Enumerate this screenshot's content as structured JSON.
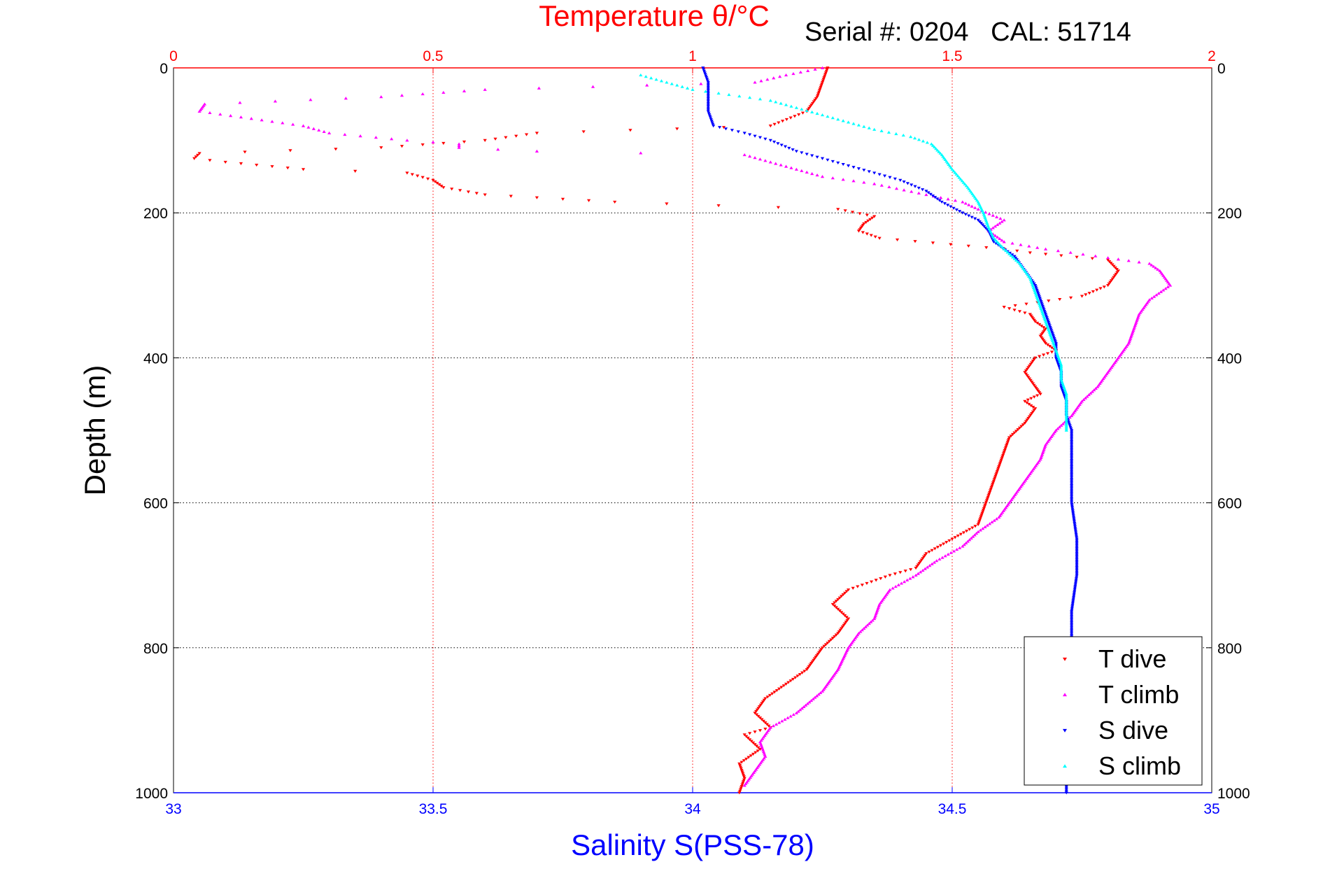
{
  "chart_data": {
    "type": "scatter",
    "serial_text": "Serial #: 0204   CAL: 51714",
    "y_axis": {
      "label": "Depth (m)",
      "range": [
        0,
        1000
      ],
      "ticks": [
        "0",
        "200",
        "400",
        "600",
        "800",
        "1000"
      ],
      "reversed": true
    },
    "x_axis_bottom": {
      "label": "Salinity S(PSS-78)",
      "range": [
        33,
        35
      ],
      "ticks": [
        "33",
        "33.5",
        "34",
        "34.5",
        "35"
      ],
      "color": "#0000ff"
    },
    "x_axis_top": {
      "label": "Temperature θ/°C",
      "range": [
        0,
        2
      ],
      "ticks": [
        "0",
        "0.5",
        "1",
        "1.5",
        "2"
      ],
      "color": "#ff0000"
    },
    "grid": true,
    "legend": {
      "position": "bottom-right"
    },
    "series": [
      {
        "name": "T dive",
        "axis": "temperature",
        "color": "#ff0000",
        "marker": "triangle-down",
        "points": [
          [
            1.26,
            0
          ],
          [
            1.25,
            20
          ],
          [
            1.24,
            40
          ],
          [
            1.22,
            60
          ],
          [
            1.15,
            80
          ],
          [
            0.7,
            90
          ],
          [
            0.6,
            100
          ],
          [
            0.4,
            110
          ],
          [
            0.05,
            118
          ],
          [
            0.04,
            125
          ],
          [
            0.1,
            130
          ],
          [
            0.25,
            140
          ],
          [
            0.45,
            145
          ],
          [
            0.5,
            155
          ],
          [
            0.52,
            165
          ],
          [
            0.6,
            175
          ],
          [
            0.85,
            185
          ],
          [
            1.05,
            190
          ],
          [
            1.28,
            195
          ],
          [
            1.35,
            205
          ],
          [
            1.33,
            215
          ],
          [
            1.32,
            225
          ],
          [
            1.36,
            235
          ],
          [
            1.6,
            250
          ],
          [
            1.65,
            255
          ],
          [
            1.8,
            265
          ],
          [
            1.82,
            280
          ],
          [
            1.8,
            300
          ],
          [
            1.75,
            315
          ],
          [
            1.6,
            330
          ],
          [
            1.65,
            340
          ],
          [
            1.66,
            350
          ],
          [
            1.68,
            360
          ],
          [
            1.67,
            370
          ],
          [
            1.68,
            380
          ],
          [
            1.7,
            390
          ],
          [
            1.66,
            400
          ],
          [
            1.64,
            420
          ],
          [
            1.66,
            440
          ],
          [
            1.67,
            450
          ],
          [
            1.64,
            460
          ],
          [
            1.66,
            470
          ],
          [
            1.64,
            490
          ],
          [
            1.61,
            510
          ],
          [
            1.6,
            530
          ],
          [
            1.59,
            550
          ],
          [
            1.58,
            570
          ],
          [
            1.57,
            590
          ],
          [
            1.56,
            610
          ],
          [
            1.55,
            630
          ],
          [
            1.5,
            650
          ],
          [
            1.45,
            670
          ],
          [
            1.43,
            690
          ],
          [
            1.38,
            700
          ],
          [
            1.3,
            720
          ],
          [
            1.27,
            740
          ],
          [
            1.3,
            760
          ],
          [
            1.28,
            780
          ],
          [
            1.25,
            800
          ],
          [
            1.22,
            830
          ],
          [
            1.18,
            850
          ],
          [
            1.14,
            870
          ],
          [
            1.12,
            890
          ],
          [
            1.15,
            910
          ],
          [
            1.1,
            920
          ],
          [
            1.13,
            940
          ],
          [
            1.09,
            960
          ],
          [
            1.1,
            980
          ],
          [
            1.09,
            1000
          ]
        ]
      },
      {
        "name": "T climb",
        "axis": "temperature",
        "color": "#ff00ff",
        "marker": "triangle-up",
        "points": [
          [
            1.25,
            0
          ],
          [
            1.18,
            10
          ],
          [
            1.12,
            20
          ],
          [
            0.6,
            30
          ],
          [
            0.4,
            40
          ],
          [
            0.06,
            50
          ],
          [
            0.05,
            60
          ],
          [
            0.15,
            70
          ],
          [
            0.25,
            80
          ],
          [
            0.3,
            90
          ],
          [
            0.45,
            100
          ],
          [
            0.55,
            105
          ],
          [
            0.55,
            110
          ],
          [
            0.7,
            115
          ],
          [
            1.1,
            120
          ],
          [
            1.15,
            130
          ],
          [
            1.2,
            140
          ],
          [
            1.25,
            150
          ],
          [
            1.35,
            160
          ],
          [
            1.45,
            175
          ],
          [
            1.52,
            185
          ],
          [
            1.55,
            195
          ],
          [
            1.6,
            210
          ],
          [
            1.57,
            225
          ],
          [
            1.6,
            240
          ],
          [
            1.68,
            250
          ],
          [
            1.8,
            262
          ],
          [
            1.88,
            270
          ],
          [
            1.9,
            280
          ],
          [
            1.92,
            300
          ],
          [
            1.88,
            320
          ],
          [
            1.86,
            340
          ],
          [
            1.85,
            360
          ],
          [
            1.84,
            380
          ],
          [
            1.82,
            400
          ],
          [
            1.8,
            420
          ],
          [
            1.78,
            440
          ],
          [
            1.75,
            460
          ],
          [
            1.73,
            480
          ],
          [
            1.7,
            500
          ],
          [
            1.68,
            520
          ],
          [
            1.67,
            540
          ],
          [
            1.65,
            560
          ],
          [
            1.63,
            580
          ],
          [
            1.61,
            600
          ],
          [
            1.59,
            620
          ],
          [
            1.55,
            640
          ],
          [
            1.52,
            660
          ],
          [
            1.47,
            680
          ],
          [
            1.43,
            700
          ],
          [
            1.38,
            720
          ],
          [
            1.36,
            740
          ],
          [
            1.35,
            760
          ],
          [
            1.32,
            780
          ],
          [
            1.3,
            800
          ],
          [
            1.28,
            830
          ],
          [
            1.25,
            860
          ],
          [
            1.2,
            890
          ],
          [
            1.15,
            910
          ],
          [
            1.13,
            930
          ],
          [
            1.14,
            950
          ],
          [
            1.12,
            970
          ],
          [
            1.1,
            990
          ]
        ]
      },
      {
        "name": "S dive",
        "axis": "salinity",
        "color": "#0000ff",
        "marker": "triangle-down",
        "points": [
          [
            34.02,
            0
          ],
          [
            34.03,
            20
          ],
          [
            34.03,
            40
          ],
          [
            34.03,
            60
          ],
          [
            34.04,
            80
          ],
          [
            34.1,
            90
          ],
          [
            34.15,
            100
          ],
          [
            34.2,
            115
          ],
          [
            34.25,
            125
          ],
          [
            34.3,
            135
          ],
          [
            34.35,
            145
          ],
          [
            34.4,
            155
          ],
          [
            34.45,
            170
          ],
          [
            34.48,
            185
          ],
          [
            34.52,
            200
          ],
          [
            34.55,
            210
          ],
          [
            34.57,
            225
          ],
          [
            34.58,
            240
          ],
          [
            34.62,
            260
          ],
          [
            34.64,
            280
          ],
          [
            34.66,
            300
          ],
          [
            34.67,
            320
          ],
          [
            34.68,
            340
          ],
          [
            34.69,
            360
          ],
          [
            34.7,
            380
          ],
          [
            34.7,
            400
          ],
          [
            34.71,
            420
          ],
          [
            34.71,
            440
          ],
          [
            34.72,
            460
          ],
          [
            34.72,
            480
          ],
          [
            34.73,
            500
          ],
          [
            34.73,
            550
          ],
          [
            34.73,
            600
          ],
          [
            34.74,
            650
          ],
          [
            34.74,
            700
          ],
          [
            34.73,
            750
          ],
          [
            34.73,
            800
          ],
          [
            34.73,
            850
          ],
          [
            34.73,
            900
          ],
          [
            34.72,
            950
          ],
          [
            34.72,
            1000
          ]
        ]
      },
      {
        "name": "S climb",
        "axis": "salinity",
        "color": "#00ffff",
        "marker": "triangle-up",
        "points": [
          [
            33.9,
            10
          ],
          [
            33.95,
            20
          ],
          [
            34.0,
            30
          ],
          [
            34.05,
            35
          ],
          [
            34.15,
            45
          ],
          [
            34.2,
            55
          ],
          [
            34.25,
            65
          ],
          [
            34.3,
            75
          ],
          [
            34.35,
            85
          ],
          [
            34.42,
            95
          ],
          [
            34.46,
            105
          ],
          [
            34.48,
            120
          ],
          [
            34.5,
            140
          ],
          [
            34.53,
            165
          ],
          [
            34.55,
            185
          ],
          [
            34.56,
            200
          ],
          [
            34.57,
            220
          ],
          [
            34.58,
            235
          ],
          [
            34.6,
            250
          ],
          [
            34.63,
            270
          ],
          [
            34.65,
            290
          ],
          [
            34.66,
            310
          ],
          [
            34.67,
            330
          ],
          [
            34.68,
            350
          ],
          [
            34.69,
            370
          ],
          [
            34.7,
            390
          ],
          [
            34.71,
            410
          ],
          [
            34.71,
            430
          ],
          [
            34.72,
            450
          ],
          [
            34.72,
            470
          ],
          [
            34.72,
            490
          ],
          [
            34.72,
            500
          ]
        ]
      }
    ]
  }
}
